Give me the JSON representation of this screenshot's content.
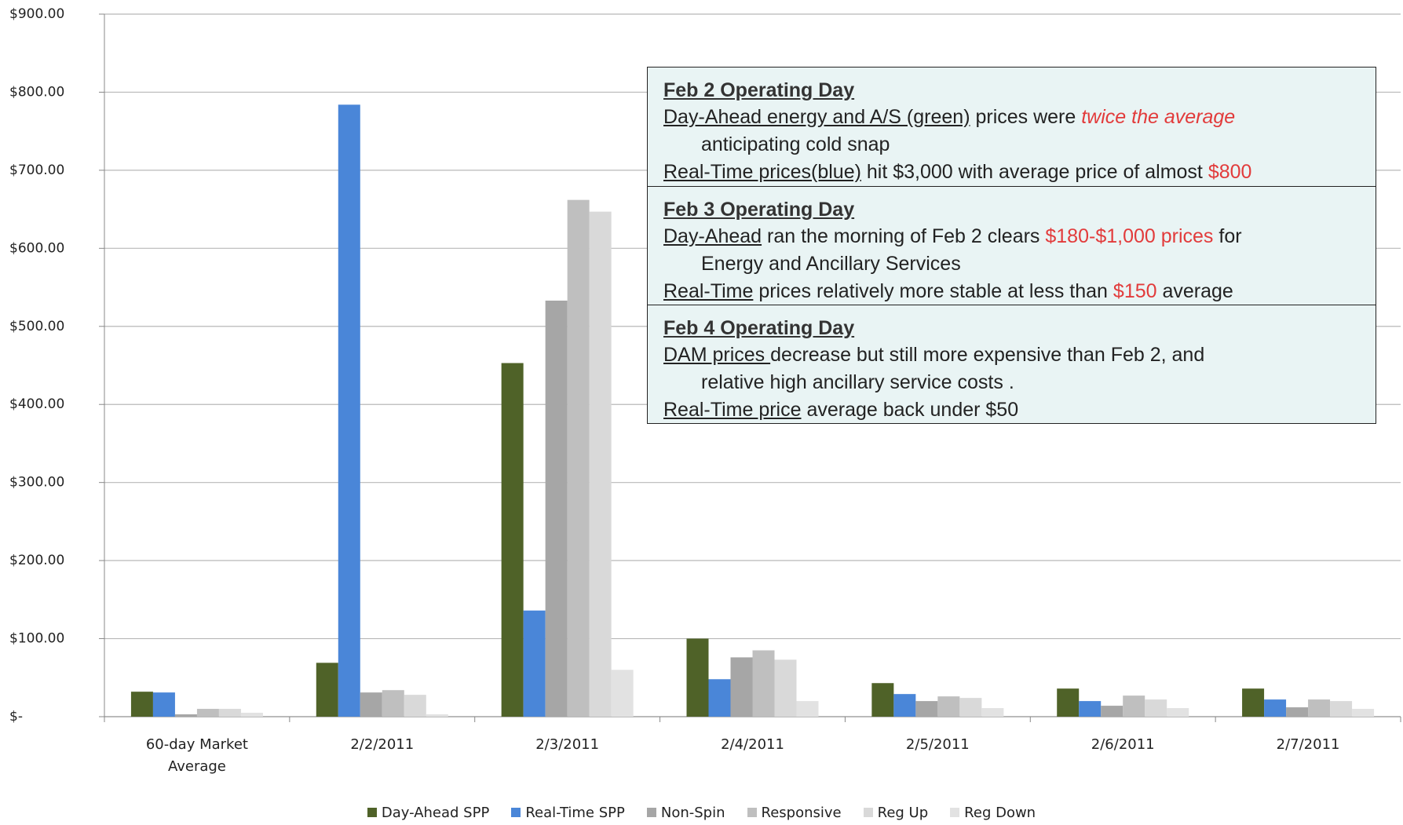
{
  "chart_data": {
    "type": "bar",
    "categories": [
      "60-day Market Average",
      "2/2/2011",
      "2/3/2011",
      "2/4/2011",
      "2/5/2011",
      "2/6/2011",
      "2/7/2011"
    ],
    "series": [
      {
        "name": "Day-Ahead SPP",
        "color": "#4f6228",
        "values": [
          32,
          69,
          453,
          100,
          43,
          36,
          36
        ]
      },
      {
        "name": "Real-Time SPP",
        "color": "#4a86d8",
        "values": [
          31,
          784,
          136,
          48,
          29,
          20,
          22
        ]
      },
      {
        "name": "Non-Spin",
        "color": "#a6a6a6",
        "values": [
          3,
          31,
          533,
          76,
          20,
          14,
          12
        ]
      },
      {
        "name": "Responsive",
        "color": "#bfbfbf",
        "values": [
          10,
          34,
          662,
          85,
          26,
          27,
          22
        ]
      },
      {
        "name": "Reg Up",
        "color": "#d9d9d9",
        "values": [
          10,
          28,
          647,
          73,
          24,
          22,
          20
        ]
      },
      {
        "name": "Reg Down",
        "color": "#e2e2e2",
        "values": [
          5,
          3,
          60,
          20,
          11,
          11,
          10
        ]
      }
    ],
    "ylim": [
      0,
      900
    ],
    "yticks": [
      {
        "value": 0,
        "label": "$-"
      },
      {
        "value": 100,
        "label": "$100.00"
      },
      {
        "value": 200,
        "label": "$200.00"
      },
      {
        "value": 300,
        "label": "$300.00"
      },
      {
        "value": 400,
        "label": "$400.00"
      },
      {
        "value": 500,
        "label": "$500.00"
      },
      {
        "value": 600,
        "label": "$600.00"
      },
      {
        "value": 700,
        "label": "$700.00"
      },
      {
        "value": 800,
        "label": "$800.00"
      },
      {
        "value": 900,
        "label": "$900.00"
      }
    ],
    "grid": true,
    "legend": "bottom",
    "annotations": [
      {
        "heading": "Feb 2 Operating Day",
        "lines": [
          [
            {
              "text": "Day-Ahead energy and A/S (green)",
              "style": "underline"
            },
            {
              "text": " prices were ",
              "style": "plain"
            },
            {
              "text": "twice the average",
              "style": "red-italic"
            }
          ],
          [
            {
              "text": "anticipating cold snap",
              "style": "plain"
            }
          ],
          [
            {
              "text": "Real-Time prices(blue)",
              "style": "underline"
            },
            {
              "text": " hit $3,000 with average price of almost ",
              "style": "plain"
            },
            {
              "text": "$800",
              "style": "red"
            }
          ]
        ]
      },
      {
        "heading": "Feb 3 Operating Day",
        "lines": [
          [
            {
              "text": "Day-Ahead",
              "style": "underline"
            },
            {
              "text": " ran the morning of Feb 2 clears ",
              "style": "plain"
            },
            {
              "text": "$180-$1,000 prices",
              "style": "red"
            },
            {
              "text": " for",
              "style": "plain"
            }
          ],
          [
            {
              "text": "Energy and Ancillary Services",
              "style": "plain"
            }
          ],
          [
            {
              "text": "Real-Time",
              "style": "underline"
            },
            {
              "text": " prices relatively more stable at less than ",
              "style": "plain"
            },
            {
              "text": "$150",
              "style": "red"
            },
            {
              "text": " average",
              "style": "plain"
            }
          ]
        ]
      },
      {
        "heading": "Feb 4 Operating Day",
        "lines": [
          [
            {
              "text": "DAM prices ",
              "style": "underline"
            },
            {
              "text": "decrease but still more expensive than Feb 2, and",
              "style": "plain"
            }
          ],
          [
            {
              "text": "relative high ancillary service costs .",
              "style": "plain"
            }
          ],
          [
            {
              "text": "Real-Time price",
              "style": "underline"
            },
            {
              "text": " average back under $50",
              "style": "plain"
            }
          ]
        ]
      }
    ]
  }
}
